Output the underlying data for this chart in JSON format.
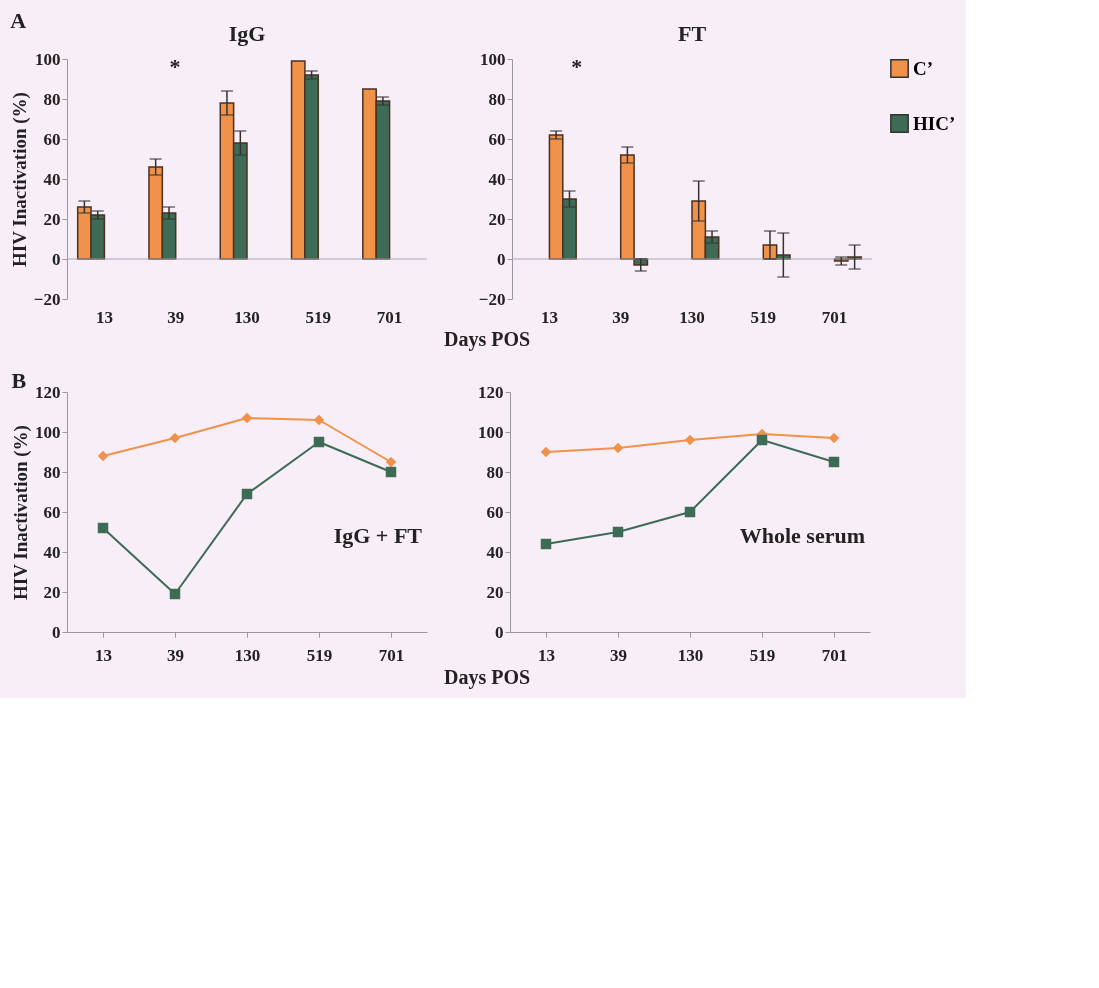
{
  "chart_data": [
    {
      "type": "bar",
      "title": "IgG",
      "ylabel": "HIV Inactivation (%)",
      "xlabel": "Days POS",
      "annotations": [
        "A",
        "*"
      ],
      "categories": [
        "13",
        "39",
        "130",
        "519",
        "701"
      ],
      "ylim": [
        -20,
        100
      ],
      "yticks": [
        -20,
        0,
        20,
        40,
        60,
        80,
        100
      ],
      "grid": false,
      "legend": false,
      "ref_lines": [
        {
          "axis": "y",
          "value": 0,
          "color": "#a8a8b8"
        }
      ],
      "series": [
        {
          "color": "#f0924a",
          "values": [
            26,
            46,
            78,
            99,
            85
          ],
          "errors": [
            3,
            4,
            6,
            null,
            null
          ]
        },
        {
          "color": "#3d6b55",
          "values": [
            22,
            23,
            58,
            92,
            79
          ],
          "errors": [
            2,
            3,
            6,
            2,
            2
          ]
        }
      ]
    },
    {
      "type": "bar",
      "title": "FT",
      "annotations": [
        "*"
      ],
      "categories": [
        "13",
        "39",
        "130",
        "519",
        "701"
      ],
      "ylim": [
        -20,
        100
      ],
      "yticks": [
        -20,
        0,
        20,
        40,
        60,
        80,
        100
      ],
      "grid": false,
      "legend": "right",
      "ref_lines": [
        {
          "axis": "y",
          "value": 0,
          "color": "#a8a8b8"
        }
      ],
      "series": [
        {
          "name": "C’",
          "color": "#f0924a",
          "values": [
            62,
            52,
            29,
            7,
            -1
          ],
          "errors": [
            2,
            4,
            10,
            7,
            2
          ]
        },
        {
          "name": "HIC’",
          "color": "#3d6b55",
          "values": [
            30,
            -3,
            11,
            2,
            1
          ],
          "errors": [
            4,
            3,
            3,
            11,
            6
          ]
        }
      ]
    },
    {
      "type": "line",
      "ylabel": "HIV Inactivation (%)",
      "xlabel": "Days POS",
      "annotations": [
        "B",
        "IgG + FT"
      ],
      "categories": [
        "13",
        "39",
        "130",
        "519",
        "701"
      ],
      "ylim": [
        0,
        120
      ],
      "yticks": [
        0,
        20,
        40,
        60,
        80,
        100,
        120
      ],
      "grid": false,
      "legend": false,
      "line_style": "solid",
      "series": [
        {
          "color": "#f0924a",
          "marker": "diamond",
          "values": [
            88,
            97,
            107,
            106,
            85
          ]
        },
        {
          "color": "#3d6b55",
          "marker": "square",
          "values": [
            52,
            19,
            69,
            95,
            80
          ]
        }
      ]
    },
    {
      "type": "line",
      "annotations": [
        "Whole serum"
      ],
      "categories": [
        "13",
        "39",
        "130",
        "519",
        "701"
      ],
      "ylim": [
        0,
        120
      ],
      "yticks": [
        0,
        20,
        40,
        60,
        80,
        100,
        120
      ],
      "grid": false,
      "legend": false,
      "line_style": "solid",
      "series": [
        {
          "color": "#f0924a",
          "marker": "diamond",
          "values": [
            90,
            92,
            96,
            99,
            97
          ]
        },
        {
          "color": "#3d6b55",
          "marker": "square",
          "values": [
            44,
            50,
            60,
            96,
            85
          ]
        }
      ]
    }
  ]
}
